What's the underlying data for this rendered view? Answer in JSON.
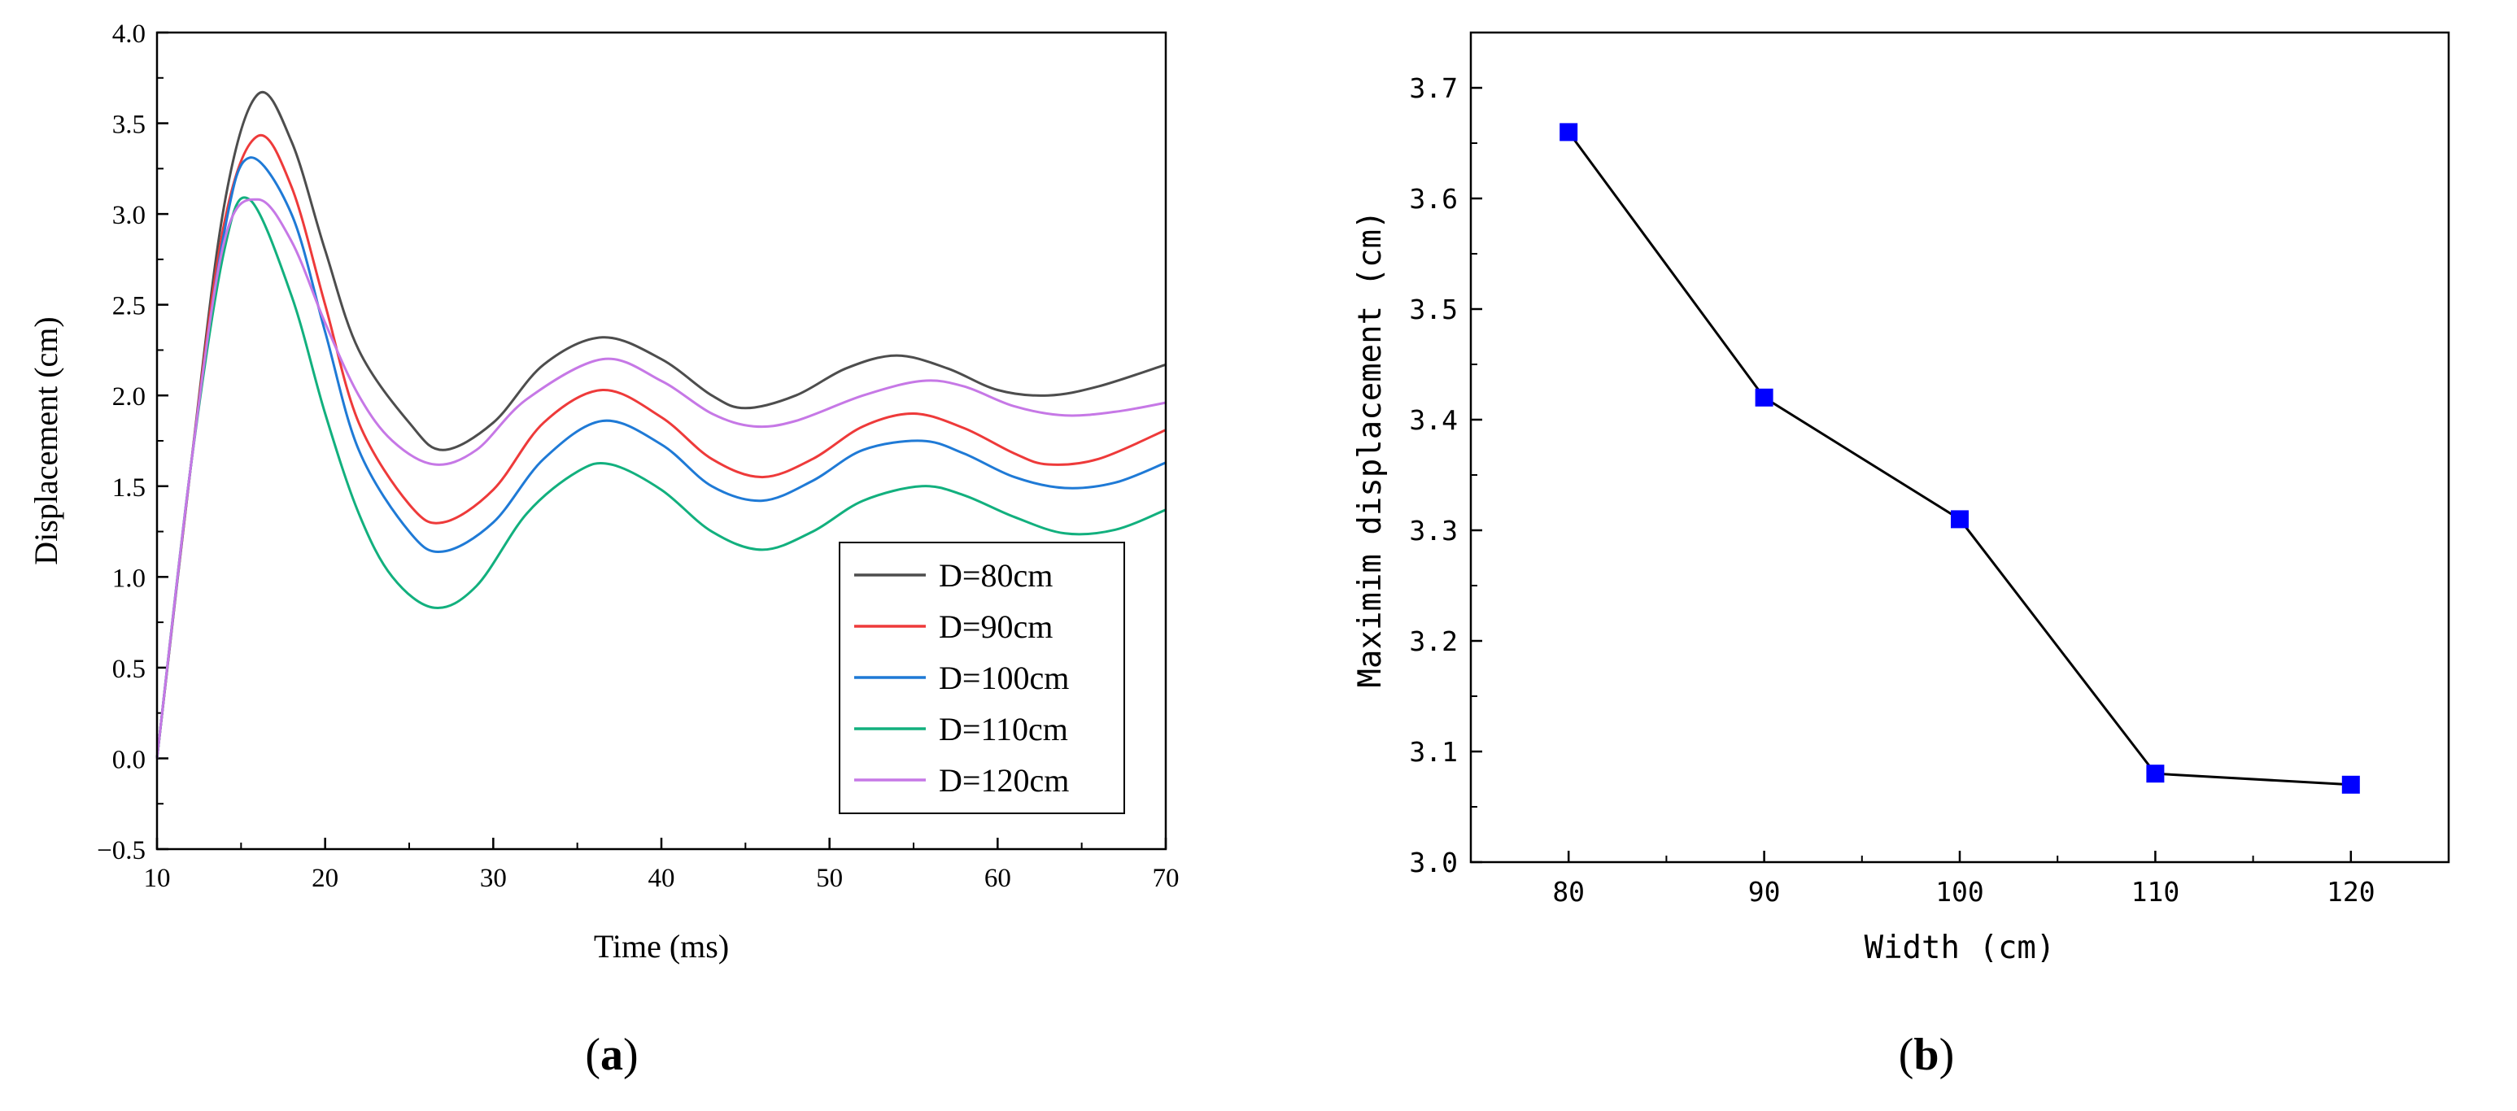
{
  "chart_data": [
    {
      "panel": "(a)",
      "panel_letter": "a",
      "type": "line",
      "title": "",
      "xlabel": "Time (ms)",
      "ylabel": "Displacement (cm)",
      "xlim": [
        10,
        70
      ],
      "ylim": [
        -0.5,
        4.0
      ],
      "xticks": [
        10,
        20,
        30,
        40,
        50,
        60,
        70
      ],
      "yticks": [
        -0.5,
        0.0,
        0.5,
        1.0,
        1.5,
        2.0,
        2.5,
        3.0,
        3.5,
        4.0
      ],
      "xtick_labels": [
        "10",
        "20",
        "30",
        "40",
        "50",
        "60",
        "70"
      ],
      "ytick_labels": [
        "−0.5",
        "0.0",
        "0.5",
        "1.0",
        "1.5",
        "2.0",
        "2.5",
        "3.0",
        "3.5",
        "4.0"
      ],
      "legend_position": "bottom-right",
      "series": [
        {
          "name": "D=80cm",
          "color": "#4d4d4d",
          "points": [
            [
              10,
              0
            ],
            [
              12,
              1.6
            ],
            [
              14,
              3.05
            ],
            [
              16,
              3.66
            ],
            [
              18,
              3.4
            ],
            [
              20,
              2.8
            ],
            [
              22,
              2.25
            ],
            [
              25,
              1.85
            ],
            [
              27,
              1.7
            ],
            [
              30,
              1.85
            ],
            [
              33,
              2.17
            ],
            [
              36.5,
              2.32
            ],
            [
              40,
              2.2
            ],
            [
              43,
              2.0
            ],
            [
              45,
              1.93
            ],
            [
              48,
              2.0
            ],
            [
              51,
              2.15
            ],
            [
              54,
              2.22
            ],
            [
              57,
              2.15
            ],
            [
              60,
              2.03
            ],
            [
              63,
              2.0
            ],
            [
              66,
              2.05
            ],
            [
              70,
              2.17
            ]
          ]
        },
        {
          "name": "D=90cm",
          "color": "#ee3a3a",
          "points": [
            [
              10,
              0
            ],
            [
              12,
              1.6
            ],
            [
              14,
              2.95
            ],
            [
              16,
              3.43
            ],
            [
              18,
              3.15
            ],
            [
              20,
              2.5
            ],
            [
              22,
              1.85
            ],
            [
              25,
              1.4
            ],
            [
              27,
              1.3
            ],
            [
              30,
              1.48
            ],
            [
              33,
              1.85
            ],
            [
              36.5,
              2.03
            ],
            [
              40,
              1.88
            ],
            [
              43,
              1.65
            ],
            [
              46,
              1.55
            ],
            [
              49,
              1.65
            ],
            [
              52,
              1.83
            ],
            [
              55,
              1.9
            ],
            [
              58,
              1.82
            ],
            [
              61,
              1.68
            ],
            [
              63,
              1.62
            ],
            [
              66,
              1.65
            ],
            [
              70,
              1.81
            ]
          ]
        },
        {
          "name": "D=100cm",
          "color": "#1f7ad6",
          "points": [
            [
              10,
              0
            ],
            [
              12,
              1.6
            ],
            [
              14,
              2.9
            ],
            [
              15.5,
              3.31
            ],
            [
              18,
              3.0
            ],
            [
              20,
              2.35
            ],
            [
              22,
              1.7
            ],
            [
              25,
              1.25
            ],
            [
              27,
              1.14
            ],
            [
              30,
              1.3
            ],
            [
              33,
              1.65
            ],
            [
              36.5,
              1.86
            ],
            [
              40,
              1.73
            ],
            [
              43,
              1.5
            ],
            [
              46,
              1.42
            ],
            [
              49,
              1.53
            ],
            [
              52,
              1.7
            ],
            [
              55.5,
              1.75
            ],
            [
              58,
              1.68
            ],
            [
              61,
              1.55
            ],
            [
              64,
              1.49
            ],
            [
              67,
              1.52
            ],
            [
              70,
              1.63
            ]
          ]
        },
        {
          "name": "D=110cm",
          "color": "#12b07e",
          "points": [
            [
              10,
              0
            ],
            [
              12,
              1.6
            ],
            [
              14,
              2.8
            ],
            [
              15.5,
              3.08
            ],
            [
              18,
              2.55
            ],
            [
              20,
              1.9
            ],
            [
              22,
              1.35
            ],
            [
              24,
              1.0
            ],
            [
              26.5,
              0.83
            ],
            [
              29,
              0.95
            ],
            [
              32,
              1.35
            ],
            [
              35,
              1.58
            ],
            [
              37,
              1.62
            ],
            [
              40,
              1.48
            ],
            [
              43,
              1.25
            ],
            [
              46,
              1.15
            ],
            [
              49,
              1.25
            ],
            [
              52,
              1.42
            ],
            [
              55.5,
              1.5
            ],
            [
              58,
              1.45
            ],
            [
              61,
              1.33
            ],
            [
              64,
              1.24
            ],
            [
              67,
              1.26
            ],
            [
              70,
              1.37
            ]
          ]
        },
        {
          "name": "D=120cm",
          "color": "#c678e6",
          "points": [
            [
              10,
              0
            ],
            [
              12,
              1.6
            ],
            [
              14,
              2.85
            ],
            [
              16,
              3.08
            ],
            [
              18,
              2.85
            ],
            [
              20,
              2.4
            ],
            [
              22,
              2.0
            ],
            [
              24,
              1.75
            ],
            [
              26.5,
              1.62
            ],
            [
              29,
              1.7
            ],
            [
              32,
              1.98
            ],
            [
              36.5,
              2.2
            ],
            [
              40,
              2.08
            ],
            [
              43,
              1.9
            ],
            [
              45.5,
              1.83
            ],
            [
              48,
              1.86
            ],
            [
              52,
              2.0
            ],
            [
              55.5,
              2.08
            ],
            [
              58,
              2.05
            ],
            [
              61,
              1.94
            ],
            [
              64,
              1.89
            ],
            [
              67,
              1.91
            ],
            [
              70,
              1.96
            ]
          ]
        }
      ]
    },
    {
      "panel": "(b)",
      "panel_letter": "b",
      "type": "line",
      "title": "",
      "xlabel": "Width (cm)",
      "ylabel": "Maximim displacement (cm)",
      "xlim": [
        75,
        125
      ],
      "ylim": [
        3.0,
        3.75
      ],
      "xticks": [
        80,
        90,
        100,
        110,
        120
      ],
      "yticks": [
        3.0,
        3.1,
        3.2,
        3.3,
        3.4,
        3.5,
        3.6,
        3.7
      ],
      "xtick_labels": [
        "80",
        "90",
        "100",
        "110",
        "120"
      ],
      "ytick_labels": [
        "3.0",
        "3.1",
        "3.2",
        "3.3",
        "3.4",
        "3.5",
        "3.6",
        "3.7"
      ],
      "series": [
        {
          "name": "Maximim displacement",
          "color": "#000000",
          "marker_color": "#0000ff",
          "marker": "square",
          "x": [
            80,
            90,
            100,
            110,
            120
          ],
          "y": [
            3.66,
            3.42,
            3.31,
            3.08,
            3.07
          ]
        }
      ]
    }
  ]
}
